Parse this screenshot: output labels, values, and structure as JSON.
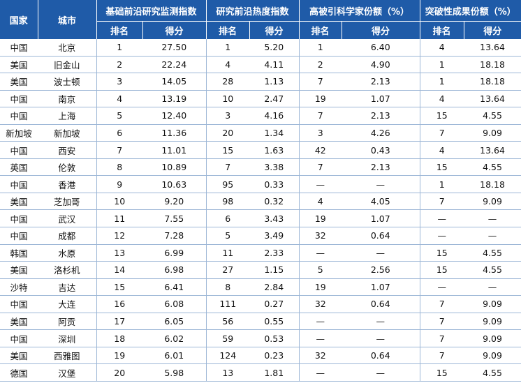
{
  "headers": {
    "country": "国家",
    "city": "城市",
    "groups": [
      "基础前沿研究监测指数",
      "研究前沿热度指数",
      "高被引科学家份额（%）",
      "突破性成果份额（%）"
    ],
    "rank": "排名",
    "score": "得分"
  },
  "rows": [
    [
      "中国",
      "北京",
      "1",
      "27.50",
      "1",
      "5.20",
      "1",
      "6.40",
      "4",
      "13.64"
    ],
    [
      "美国",
      "旧金山",
      "2",
      "22.24",
      "4",
      "4.11",
      "2",
      "4.90",
      "1",
      "18.18"
    ],
    [
      "美国",
      "波士顿",
      "3",
      "14.05",
      "28",
      "1.13",
      "7",
      "2.13",
      "1",
      "18.18"
    ],
    [
      "中国",
      "南京",
      "4",
      "13.19",
      "10",
      "2.47",
      "19",
      "1.07",
      "4",
      "13.64"
    ],
    [
      "中国",
      "上海",
      "5",
      "12.40",
      "3",
      "4.16",
      "7",
      "2.13",
      "15",
      "4.55"
    ],
    [
      "新加坡",
      "新加坡",
      "6",
      "11.36",
      "20",
      "1.34",
      "3",
      "4.26",
      "7",
      "9.09"
    ],
    [
      "中国",
      "西安",
      "7",
      "11.01",
      "15",
      "1.63",
      "42",
      "0.43",
      "4",
      "13.64"
    ],
    [
      "英国",
      "伦敦",
      "8",
      "10.89",
      "7",
      "3.38",
      "7",
      "2.13",
      "15",
      "4.55"
    ],
    [
      "中国",
      "香港",
      "9",
      "10.63",
      "95",
      "0.33",
      "—",
      "—",
      "1",
      "18.18"
    ],
    [
      "美国",
      "芝加哥",
      "10",
      "9.20",
      "98",
      "0.32",
      "4",
      "4.05",
      "7",
      "9.09"
    ],
    [
      "中国",
      "武汉",
      "11",
      "7.55",
      "6",
      "3.43",
      "19",
      "1.07",
      "—",
      "—"
    ],
    [
      "中国",
      "成都",
      "12",
      "7.28",
      "5",
      "3.49",
      "32",
      "0.64",
      "—",
      "—"
    ],
    [
      "韩国",
      "水原",
      "13",
      "6.99",
      "11",
      "2.33",
      "—",
      "—",
      "15",
      "4.55"
    ],
    [
      "美国",
      "洛杉机",
      "14",
      "6.98",
      "27",
      "1.15",
      "5",
      "2.56",
      "15",
      "4.55"
    ],
    [
      "沙特",
      "吉达",
      "15",
      "6.41",
      "8",
      "2.84",
      "19",
      "1.07",
      "—",
      "—"
    ],
    [
      "中国",
      "大连",
      "16",
      "6.08",
      "111",
      "0.27",
      "32",
      "0.64",
      "7",
      "9.09"
    ],
    [
      "美国",
      "阿贡",
      "17",
      "6.05",
      "56",
      "0.55",
      "—",
      "—",
      "7",
      "9.09"
    ],
    [
      "中国",
      "深圳",
      "18",
      "6.02",
      "59",
      "0.53",
      "—",
      "—",
      "7",
      "9.09"
    ],
    [
      "美国",
      "西雅图",
      "19",
      "6.01",
      "124",
      "0.23",
      "32",
      "0.64",
      "7",
      "9.09"
    ],
    [
      "德国",
      "汉堡",
      "20",
      "5.98",
      "13",
      "1.81",
      "—",
      "—",
      "15",
      "4.55"
    ]
  ]
}
